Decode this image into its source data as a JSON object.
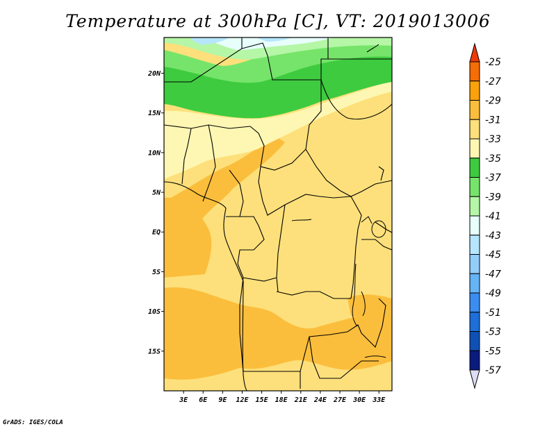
{
  "title": "Temperature at 300hPa [C], VT: 2019013006",
  "credit": "GrADS: IGES/COLA",
  "map": {
    "lon_range": [
      0,
      35
    ],
    "lat_range": [
      -20,
      24.5
    ],
    "lon_ticks": [
      "3E",
      "6E",
      "9E",
      "12E",
      "15E",
      "18E",
      "21E",
      "24E",
      "27E",
      "30E",
      "33E"
    ],
    "lon_tick_values": [
      3,
      6,
      9,
      12,
      15,
      18,
      21,
      24,
      27,
      30,
      33
    ],
    "lat_ticks": [
      "20N",
      "15N",
      "10N",
      "5N",
      "EQ",
      "5S",
      "10S",
      "15S"
    ],
    "lat_tick_values": [
      20,
      15,
      10,
      5,
      0,
      -5,
      -10,
      -15
    ]
  },
  "colorbar": {
    "levels": [
      "-25",
      "-27",
      "-29",
      "-31",
      "-33",
      "-35",
      "-37",
      "-39",
      "-41",
      "-43",
      "-45",
      "-47",
      "-49",
      "-51",
      "-53",
      "-55",
      "-57"
    ],
    "colors": [
      "#ee3a0a",
      "#f56d06",
      "#f9a20c",
      "#fbbe3c",
      "#fde07b",
      "#fef7b3",
      "#3ecb40",
      "#76e46a",
      "#b5f6a7",
      "#e7fefa",
      "#b6e6fe",
      "#93cdfa",
      "#65b4f6",
      "#3b8df0",
      "#1e6fd8",
      "#0f50b5",
      "#0b1b7e",
      "#dcdcf5"
    ]
  }
}
